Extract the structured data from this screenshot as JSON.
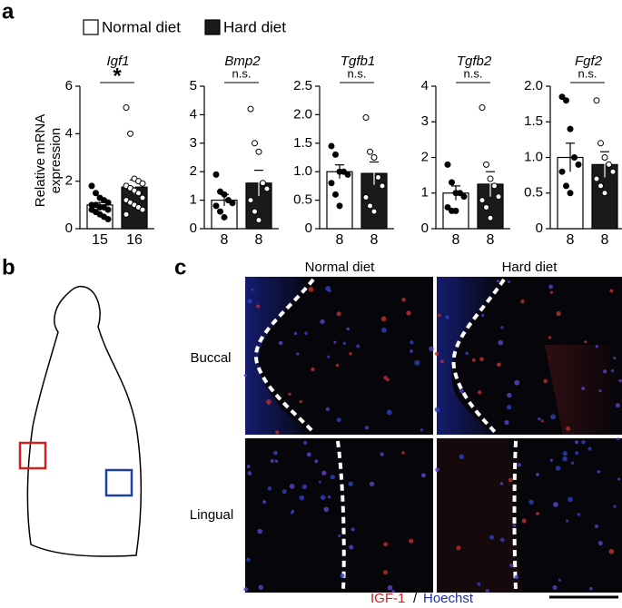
{
  "panel_labels": [
    "a",
    "b",
    "c"
  ],
  "legend": [
    {
      "name": "Normal diet",
      "color": "#ffffff"
    },
    {
      "name": "Hard diet",
      "color": "#1a1a1a"
    }
  ],
  "chart_data": [
    {
      "type": "bar",
      "title": "Igf1",
      "ylabel": "Relative mRNA expression",
      "annotation": "*",
      "categories": [
        "15",
        "16"
      ],
      "values": [
        1.0,
        1.75
      ],
      "errors": [
        0.1,
        0.3
      ],
      "points": [
        [
          1.8,
          1.5,
          1.3,
          1.2,
          1.1,
          1.0,
          1.0,
          0.9,
          0.9,
          0.8,
          0.8,
          0.7,
          0.6,
          0.5,
          0.4
        ],
        [
          5.1,
          4.0,
          2.1,
          2.0,
          1.9,
          1.8,
          1.7,
          1.6,
          1.5,
          1.3,
          1.2,
          1.1,
          1.0,
          0.9,
          0.8,
          0.6
        ]
      ],
      "ylim": [
        0,
        6
      ],
      "yticks": [
        0,
        2,
        4,
        6
      ]
    },
    {
      "type": "bar",
      "title": "Bmp2",
      "annotation": "n.s.",
      "categories": [
        "8",
        "8"
      ],
      "values": [
        1.0,
        1.6
      ],
      "errors": [
        0.2,
        0.45
      ],
      "points": [
        [
          1.9,
          1.3,
          1.2,
          1.0,
          0.9,
          0.8,
          0.6,
          0.4
        ],
        [
          4.2,
          3.0,
          2.7,
          1.6,
          1.4,
          1.0,
          0.6,
          0.3
        ]
      ],
      "ylim": [
        0,
        5
      ],
      "yticks": [
        0,
        1,
        2,
        3,
        4,
        5
      ]
    },
    {
      "type": "bar",
      "title": "Tgfb1",
      "annotation": "n.s.",
      "categories": [
        "8",
        "8"
      ],
      "values": [
        1.0,
        0.97
      ],
      "errors": [
        0.12,
        0.2
      ],
      "points": [
        [
          1.45,
          1.3,
          1.0,
          1.0,
          0.95,
          0.8,
          0.6,
          0.4
        ],
        [
          1.95,
          1.35,
          1.25,
          0.9,
          0.75,
          0.55,
          0.4,
          0.3
        ]
      ],
      "ylim": [
        0,
        2.5
      ],
      "yticks": [
        0,
        0.5,
        {
          "value": 1,
          "label": "1.0"
        },
        1.5,
        {
          "value": 2,
          "label": "2.0"
        },
        2.5
      ]
    },
    {
      "type": "bar",
      "title": "Tgfb2",
      "annotation": "n.s.",
      "categories": [
        "8",
        "8"
      ],
      "values": [
        1.0,
        1.25
      ],
      "errors": [
        0.2,
        0.35
      ],
      "points": [
        [
          1.8,
          1.3,
          1.0,
          1.0,
          0.9,
          0.6,
          0.5,
          0.5
        ],
        [
          3.4,
          1.8,
          1.4,
          1.2,
          0.9,
          0.8,
          0.6,
          0.3
        ]
      ],
      "ylim": [
        0,
        4
      ],
      "yticks": [
        0,
        1,
        2,
        3,
        4
      ]
    },
    {
      "type": "bar",
      "title": "Fgf2",
      "annotation": "n.s.",
      "categories": [
        "8",
        "8"
      ],
      "values": [
        1.0,
        0.9
      ],
      "errors": [
        0.2,
        0.18
      ],
      "points": [
        [
          1.85,
          1.8,
          1.4,
          1.0,
          0.9,
          0.8,
          0.6,
          0.5
        ],
        [
          1.8,
          1.2,
          1.0,
          0.9,
          0.8,
          0.7,
          0.6,
          0.5
        ]
      ],
      "ylim": [
        0,
        2
      ],
      "yticks": [
        0,
        0.5,
        {
          "value": 1,
          "label": "1.0"
        },
        1.5,
        {
          "value": 2,
          "label": "2.0"
        }
      ]
    }
  ],
  "panel_c": {
    "column_labels": [
      "Normal diet",
      "Hard diet"
    ],
    "row_labels": [
      "Buccal",
      "Lingual"
    ],
    "caption": {
      "stain1": "IGF-1",
      "separator": "/",
      "stain2": "Hoechst"
    }
  }
}
